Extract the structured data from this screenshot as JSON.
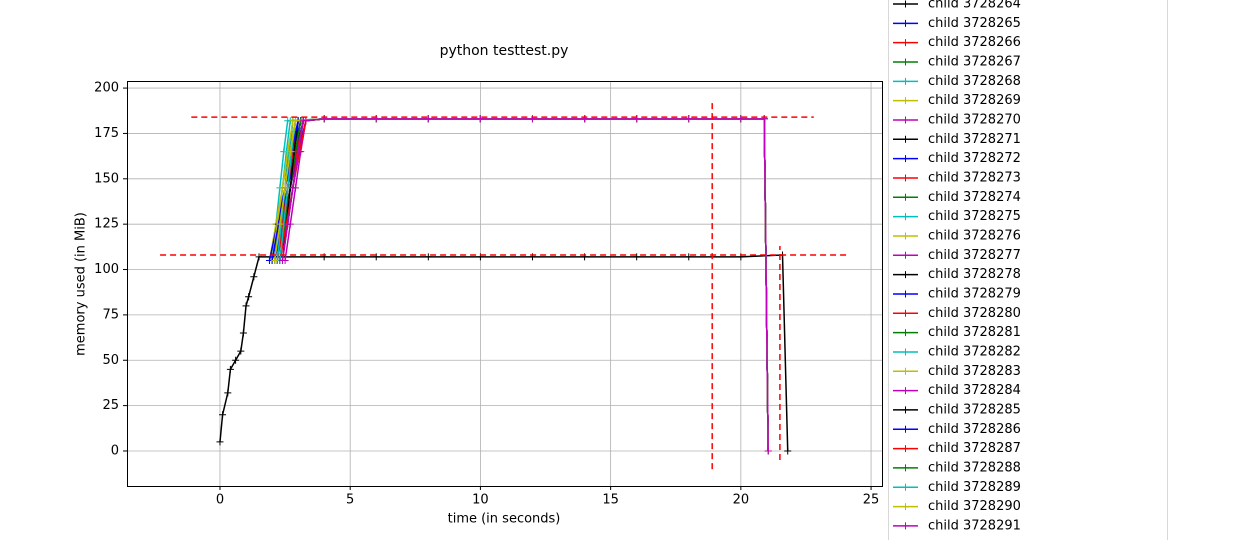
{
  "chart_data": {
    "type": "line",
    "title": "python testtest.py",
    "xlabel": "time (in seconds)",
    "ylabel": "memory used (in MiB)",
    "xlim": [
      -3.57,
      25.42
    ],
    "ylim": [
      -19.3,
      203.9
    ],
    "xticks": [
      0,
      5,
      10,
      15,
      20,
      25
    ],
    "yticks": [
      0,
      25,
      50,
      75,
      100,
      125,
      150,
      175,
      200
    ],
    "grid": true,
    "legend": "right",
    "main": {
      "color": "#000000",
      "x": [
        0,
        0.1,
        0.3,
        0.4,
        0.6,
        0.8,
        0.9,
        1.0,
        1.1,
        1.3,
        1.5,
        2,
        4,
        6,
        8,
        10,
        12,
        14,
        16,
        18,
        20,
        21.6,
        21.8
      ],
      "values": [
        5,
        20,
        32,
        45,
        50,
        55,
        65,
        80,
        85,
        96,
        107,
        107,
        107,
        107,
        107,
        107,
        107,
        107,
        107,
        107,
        107,
        108,
        0
      ]
    },
    "reference_lines": {
      "color": "#ff0000",
      "hlines": [
        {
          "y": 184,
          "xmin": -1.1,
          "xmax": 22.8
        },
        {
          "y": 108,
          "xmin": -2.3,
          "xmax": 24.1
        }
      ],
      "vlines": [
        {
          "x": 18.9,
          "ymin": -10,
          "ymax": 193
        },
        {
          "x": 21.5,
          "ymin": -5,
          "ymax": 113
        }
      ]
    },
    "series": [
      {
        "name": "child 3728264",
        "color": "#000000",
        "x": [
          2.3,
          2.45,
          2.6,
          2.75,
          2.9,
          4,
          6,
          8,
          10,
          12,
          14,
          16,
          18,
          20,
          20.9,
          21.05
        ],
        "values": [
          105,
          125,
          145,
          165,
          182,
          183,
          183,
          183,
          183,
          183,
          183,
          183,
          183,
          183,
          183,
          0
        ]
      },
      {
        "name": "child 3728265",
        "color": "#0000ff",
        "x": [
          2.0,
          2.3,
          2.6,
          2.9,
          3.2,
          4,
          6,
          8,
          10,
          12,
          14,
          16,
          18,
          20,
          20.9,
          21.05
        ],
        "values": [
          105,
          125,
          145,
          165,
          182,
          183,
          183,
          183,
          183,
          183,
          183,
          183,
          183,
          183,
          183,
          0
        ]
      },
      {
        "name": "child 3728266",
        "color": "#ff0000",
        "x": [
          2.1,
          2.3,
          2.5,
          2.7,
          2.9,
          4,
          6,
          8,
          10,
          12,
          14,
          16,
          18,
          20,
          20.9,
          21.05
        ],
        "values": [
          105,
          125,
          145,
          165,
          182,
          183,
          183,
          183,
          183,
          183,
          183,
          183,
          183,
          183,
          183,
          0
        ]
      },
      {
        "name": "child 3728267",
        "color": "#008000",
        "x": [
          2.2,
          2.4,
          2.6,
          2.8,
          3.0,
          4,
          6,
          8,
          10,
          12,
          14,
          16,
          18,
          20,
          20.9,
          21.05
        ],
        "values": [
          105,
          125,
          145,
          165,
          182,
          183,
          183,
          183,
          183,
          183,
          183,
          183,
          183,
          183,
          183,
          0
        ]
      },
      {
        "name": "child 3728268",
        "color": "#00bfbf",
        "x": [
          2.0,
          2.15,
          2.3,
          2.45,
          2.6,
          4,
          6,
          8,
          10,
          12,
          14,
          16,
          18,
          20,
          20.9,
          21.05
        ],
        "values": [
          105,
          125,
          145,
          165,
          182,
          183,
          183,
          183,
          183,
          183,
          183,
          183,
          183,
          183,
          183,
          0
        ]
      },
      {
        "name": "child 3728269",
        "color": "#bfbf00",
        "x": [
          1.9,
          2.15,
          2.4,
          2.65,
          2.9,
          4,
          6,
          8,
          10,
          12,
          14,
          16,
          18,
          20,
          20.9,
          21.05
        ],
        "values": [
          105,
          125,
          145,
          165,
          182,
          183,
          183,
          183,
          183,
          183,
          183,
          183,
          183,
          183,
          183,
          0
        ]
      },
      {
        "name": "child 3728270",
        "color": "#bf00bf",
        "x": [
          2.3,
          2.55,
          2.8,
          3.05,
          3.3,
          4,
          6,
          8,
          10,
          12,
          14,
          16,
          18,
          20,
          20.9,
          21.05
        ],
        "values": [
          105,
          125,
          145,
          165,
          182,
          183,
          183,
          183,
          183,
          183,
          183,
          183,
          183,
          183,
          183,
          0
        ]
      },
      {
        "name": "child 3728271",
        "color": "#000000",
        "x": [
          2.2,
          2.35,
          2.5,
          2.65,
          2.8,
          4,
          6,
          8,
          10,
          12,
          14,
          16,
          18,
          20,
          20.9,
          21.05
        ],
        "values": [
          105,
          125,
          145,
          165,
          182,
          183,
          183,
          183,
          183,
          183,
          183,
          183,
          183,
          183,
          183,
          0
        ]
      },
      {
        "name": "child 3728272",
        "color": "#0000ff",
        "x": [
          2.1,
          2.4,
          2.7,
          3.0,
          3.3,
          4,
          6,
          8,
          10,
          12,
          14,
          16,
          18,
          20,
          20.9,
          21.05
        ],
        "values": [
          105,
          125,
          145,
          165,
          182,
          183,
          183,
          183,
          183,
          183,
          183,
          183,
          183,
          183,
          183,
          0
        ]
      },
      {
        "name": "child 3728273",
        "color": "#ff0000",
        "x": [
          2.2,
          2.45,
          2.7,
          2.95,
          3.2,
          4,
          6,
          8,
          10,
          12,
          14,
          16,
          18,
          20,
          20.9,
          21.05
        ],
        "values": [
          105,
          125,
          145,
          165,
          182,
          183,
          183,
          183,
          183,
          183,
          183,
          183,
          183,
          183,
          183,
          0
        ]
      },
      {
        "name": "child 3728274",
        "color": "#008000",
        "x": [
          2.3,
          2.5,
          2.7,
          2.9,
          3.1,
          4,
          6,
          8,
          10,
          12,
          14,
          16,
          18,
          20,
          20.9,
          21.05
        ],
        "values": [
          105,
          125,
          145,
          165,
          182,
          183,
          183,
          183,
          183,
          183,
          183,
          183,
          183,
          183,
          183,
          0
        ]
      },
      {
        "name": "child 3728275",
        "color": "#00bfbf",
        "x": [
          2.1,
          2.25,
          2.4,
          2.55,
          2.7,
          4,
          6,
          8,
          10,
          12,
          14,
          16,
          18,
          20,
          20.9,
          21.05
        ],
        "values": [
          105,
          125,
          145,
          165,
          182,
          183,
          183,
          183,
          183,
          183,
          183,
          183,
          183,
          183,
          183,
          0
        ]
      },
      {
        "name": "child 3728276",
        "color": "#bfbf00",
        "x": [
          2.0,
          2.25,
          2.5,
          2.75,
          3.0,
          4,
          6,
          8,
          10,
          12,
          14,
          16,
          18,
          20,
          20.9,
          21.05
        ],
        "values": [
          105,
          125,
          145,
          165,
          182,
          183,
          183,
          183,
          183,
          183,
          183,
          183,
          183,
          183,
          183,
          0
        ]
      },
      {
        "name": "child 3728277",
        "color": "#bf00bf",
        "x": [
          2.4,
          2.6,
          2.8,
          3.0,
          3.2,
          4,
          6,
          8,
          10,
          12,
          14,
          16,
          18,
          20,
          20.9,
          21.05
        ],
        "values": [
          105,
          125,
          145,
          165,
          182,
          183,
          183,
          183,
          183,
          183,
          183,
          183,
          183,
          183,
          183,
          0
        ]
      },
      {
        "name": "child 3728278",
        "color": "#000000",
        "x": [
          2.3,
          2.5,
          2.7,
          2.9,
          3.1,
          4,
          6,
          8,
          10,
          12,
          14,
          16,
          18,
          20,
          20.9,
          21.05
        ],
        "values": [
          105,
          125,
          145,
          165,
          182,
          183,
          183,
          183,
          183,
          183,
          183,
          183,
          183,
          183,
          183,
          0
        ]
      },
      {
        "name": "child 3728279",
        "color": "#0000ff",
        "x": [
          1.9,
          2.2,
          2.5,
          2.8,
          3.1,
          4,
          6,
          8,
          10,
          12,
          14,
          16,
          18,
          20,
          20.9,
          21.05
        ],
        "values": [
          105,
          125,
          145,
          165,
          182,
          183,
          183,
          183,
          183,
          183,
          183,
          183,
          183,
          183,
          183,
          0
        ]
      },
      {
        "name": "child 3728280",
        "color": "#ff0000",
        "x": [
          2.2,
          2.4,
          2.6,
          2.8,
          3.0,
          4,
          6,
          8,
          10,
          12,
          14,
          16,
          18,
          20,
          20.9,
          21.05
        ],
        "values": [
          105,
          125,
          145,
          165,
          182,
          183,
          183,
          183,
          183,
          183,
          183,
          183,
          183,
          183,
          183,
          0
        ]
      },
      {
        "name": "child 3728281",
        "color": "#008000",
        "x": [
          2.3,
          2.5,
          2.7,
          2.9,
          3.1,
          4,
          6,
          8,
          10,
          12,
          14,
          16,
          18,
          20,
          20.9,
          21.05
        ],
        "values": [
          105,
          125,
          145,
          165,
          182,
          183,
          183,
          183,
          183,
          183,
          183,
          183,
          183,
          183,
          183,
          0
        ]
      },
      {
        "name": "child 3728282",
        "color": "#00bfbf",
        "x": [
          2.2,
          2.35,
          2.5,
          2.65,
          2.8,
          4,
          6,
          8,
          10,
          12,
          14,
          16,
          18,
          20,
          20.9,
          21.05
        ],
        "values": [
          105,
          125,
          145,
          165,
          182,
          183,
          183,
          183,
          183,
          183,
          183,
          183,
          183,
          183,
          183,
          0
        ]
      },
      {
        "name": "child 3728283",
        "color": "#bfbf00",
        "x": [
          2.0,
          2.2,
          2.4,
          2.6,
          2.8,
          4,
          6,
          8,
          10,
          12,
          14,
          16,
          18,
          20,
          20.9,
          21.05
        ],
        "values": [
          105,
          125,
          145,
          165,
          182,
          183,
          183,
          183,
          183,
          183,
          183,
          183,
          183,
          183,
          183,
          0
        ]
      },
      {
        "name": "child 3728284",
        "color": "#bf00bf",
        "x": [
          2.5,
          2.7,
          2.9,
          3.1,
          3.3,
          4,
          6,
          8,
          10,
          12,
          14,
          16,
          18,
          20,
          20.9,
          21.05
        ],
        "values": [
          105,
          125,
          145,
          165,
          182,
          183,
          183,
          183,
          183,
          183,
          183,
          183,
          183,
          183,
          183,
          0
        ]
      },
      {
        "name": "child 3728285",
        "color": "#000000",
        "x": [
          2.4,
          2.55,
          2.7,
          2.85,
          3.0,
          4,
          6,
          8,
          10,
          12,
          14,
          16,
          18,
          20,
          20.9,
          21.05
        ],
        "values": [
          105,
          125,
          145,
          165,
          182,
          183,
          183,
          183,
          183,
          183,
          183,
          183,
          183,
          183,
          183,
          0
        ]
      },
      {
        "name": "child 3728286",
        "color": "#0000ff",
        "x": [
          2.0,
          2.25,
          2.5,
          2.75,
          3.0,
          4,
          6,
          8,
          10,
          12,
          14,
          16,
          18,
          20,
          20.9,
          21.05
        ],
        "values": [
          105,
          125,
          145,
          165,
          182,
          183,
          183,
          183,
          183,
          183,
          183,
          183,
          183,
          183,
          183,
          0
        ]
      },
      {
        "name": "child 3728287",
        "color": "#ff0000",
        "x": [
          2.3,
          2.55,
          2.8,
          3.05,
          3.3,
          4,
          6,
          8,
          10,
          12,
          14,
          16,
          18,
          20,
          20.9,
          21.05
        ],
        "values": [
          105,
          125,
          145,
          165,
          182,
          183,
          183,
          183,
          183,
          183,
          183,
          183,
          183,
          183,
          183,
          0
        ]
      },
      {
        "name": "child 3728288",
        "color": "#008000",
        "x": [
          2.4,
          2.6,
          2.8,
          3.0,
          3.2,
          4,
          6,
          8,
          10,
          12,
          14,
          16,
          18,
          20,
          20.9,
          21.05
        ],
        "values": [
          105,
          125,
          145,
          165,
          182,
          183,
          183,
          183,
          183,
          183,
          183,
          183,
          183,
          183,
          183,
          0
        ]
      },
      {
        "name": "child 3728289",
        "color": "#00bfbf",
        "x": [
          2.3,
          2.45,
          2.6,
          2.75,
          2.9,
          4,
          6,
          8,
          10,
          12,
          14,
          16,
          18,
          20,
          20.9,
          21.05
        ],
        "values": [
          105,
          125,
          145,
          165,
          182,
          183,
          183,
          183,
          183,
          183,
          183,
          183,
          183,
          183,
          183,
          0
        ]
      },
      {
        "name": "child 3728290",
        "color": "#bfbf00",
        "x": [
          2.1,
          2.3,
          2.5,
          2.7,
          2.9,
          4,
          6,
          8,
          10,
          12,
          14,
          16,
          18,
          20,
          20.9,
          21.05
        ],
        "values": [
          105,
          125,
          145,
          165,
          182,
          183,
          183,
          183,
          183,
          183,
          183,
          183,
          183,
          183,
          183,
          0
        ]
      },
      {
        "name": "child 3728291",
        "color": "#bf00bf",
        "x": [
          2.4,
          2.6,
          2.8,
          3.0,
          3.2,
          4,
          6,
          8,
          10,
          12,
          14,
          16,
          18,
          20,
          20.9,
          21.05
        ],
        "values": [
          105,
          125,
          145,
          165,
          182,
          183,
          183,
          183,
          183,
          183,
          183,
          183,
          183,
          183,
          183,
          0
        ]
      }
    ]
  }
}
